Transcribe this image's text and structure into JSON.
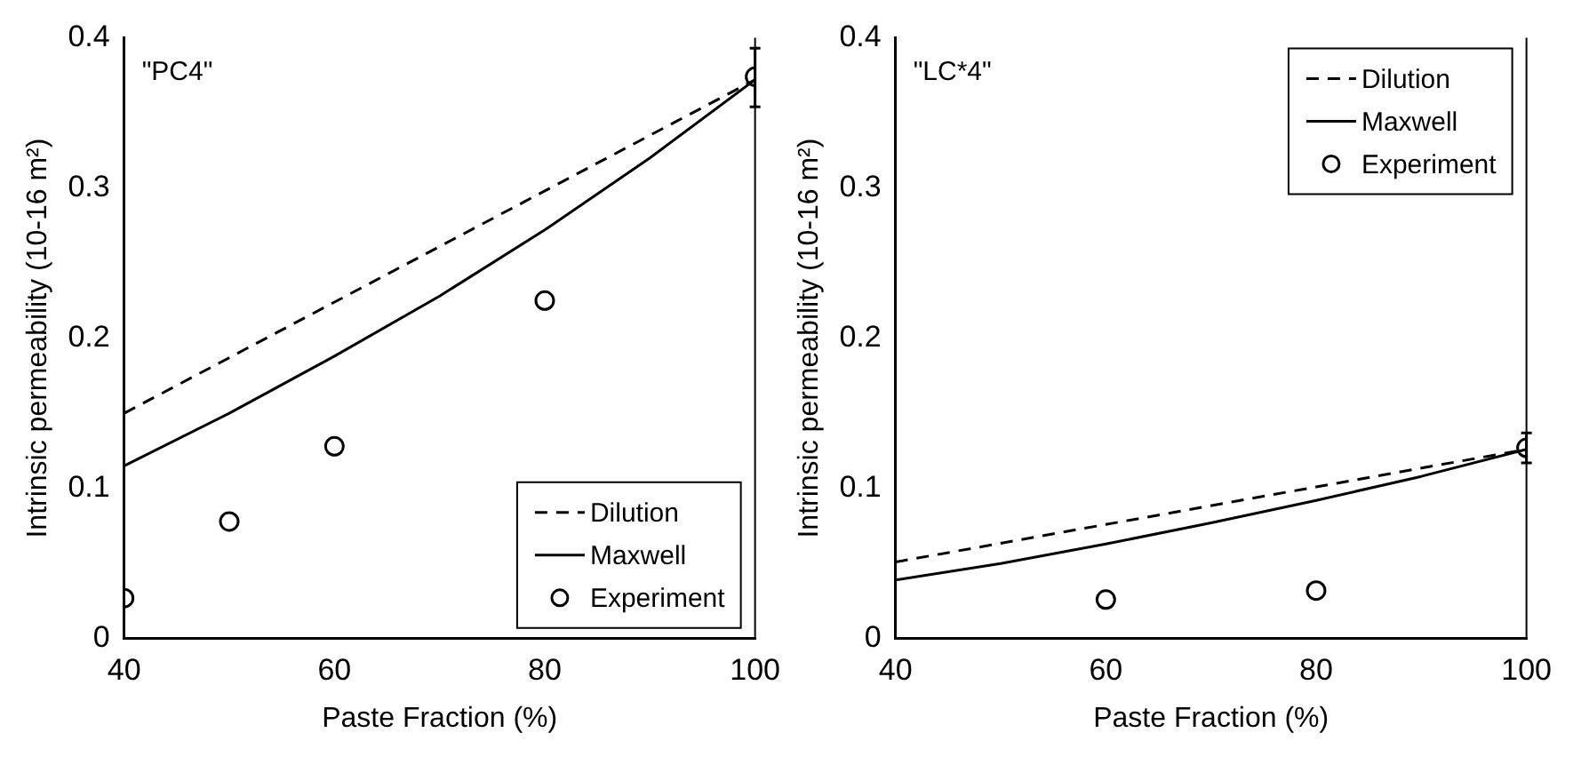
{
  "chart_data": [
    {
      "type": "line",
      "annotations": [
        "\"PC4\""
      ],
      "xlabel": "Paste Fraction (%)",
      "ylabel": "Intrinsic permeability (10-16 m²)",
      "xlim": [
        40,
        100
      ],
      "xticks": [
        40,
        60,
        80,
        100
      ],
      "ylim": [
        0,
        0.4
      ],
      "yticks": [
        0,
        0.1,
        0.2,
        0.3,
        0.4
      ],
      "grid": false,
      "legend": "bottom right",
      "series": [
        {
          "name": "Dilution",
          "type": "line",
          "line_style": "dashed",
          "marker": "none",
          "color": "#000000",
          "x": [
            40,
            50,
            60,
            70,
            80,
            90,
            100
          ],
          "values": [
            0.15,
            0.187,
            0.224,
            0.261,
            0.298,
            0.335,
            0.372
          ]
        },
        {
          "name": "Maxwell",
          "type": "line",
          "line_style": "solid",
          "marker": "none",
          "color": "#000000",
          "x": [
            40,
            50,
            60,
            70,
            80,
            90,
            100
          ],
          "values": [
            0.115,
            0.15,
            0.188,
            0.228,
            0.272,
            0.32,
            0.372
          ]
        },
        {
          "name": "Experiment",
          "type": "scatter",
          "marker": "circle",
          "color": "#000000",
          "x": [
            40,
            50,
            60,
            80,
            100
          ],
          "values": [
            0.027,
            0.078,
            0.128,
            0.225,
            0.374
          ],
          "errors": [
            null,
            null,
            null,
            null,
            [
              0.354,
              0.393
            ]
          ]
        }
      ]
    },
    {
      "type": "line",
      "annotations": [
        "\"LC*4\""
      ],
      "xlabel": "Paste Fraction (%)",
      "ylabel": "Intrinsic permeability (10-16 m²)",
      "xlim": [
        40,
        100
      ],
      "xticks": [
        40,
        60,
        80,
        100
      ],
      "ylim": [
        0,
        0.4
      ],
      "yticks": [
        0,
        0.1,
        0.2,
        0.3,
        0.4
      ],
      "grid": false,
      "legend": "top right",
      "series": [
        {
          "name": "Dilution",
          "type": "line",
          "line_style": "dashed",
          "marker": "none",
          "color": "#000000",
          "x": [
            40,
            60,
            80,
            100
          ],
          "values": [
            0.051,
            0.076,
            0.101,
            0.126
          ]
        },
        {
          "name": "Maxwell",
          "type": "line",
          "line_style": "solid",
          "marker": "none",
          "color": "#000000",
          "x": [
            40,
            50,
            60,
            70,
            80,
            90,
            100
          ],
          "values": [
            0.039,
            0.05,
            0.063,
            0.077,
            0.092,
            0.108,
            0.126
          ]
        },
        {
          "name": "Experiment",
          "type": "scatter",
          "marker": "circle",
          "color": "#000000",
          "x": [
            60,
            80,
            100
          ],
          "values": [
            0.026,
            0.032,
            0.127
          ],
          "errors": [
            null,
            null,
            [
              0.117,
              0.137
            ]
          ]
        }
      ]
    }
  ]
}
